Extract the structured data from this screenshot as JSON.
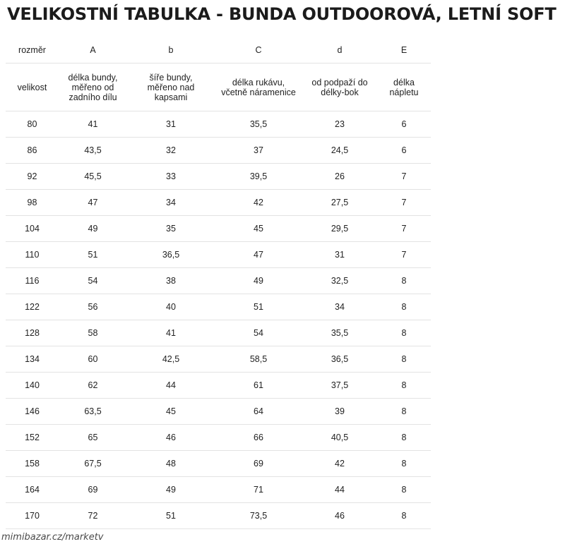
{
  "title": "VELIKOSTNÍ TABULKA - BUNDA OUTDOOROVÁ, LETNÍ SOFT",
  "table": {
    "header_codes": [
      "rozměr",
      "A",
      "b",
      "C",
      "d",
      "E"
    ],
    "header_labels": [
      [
        "velikost"
      ],
      [
        "délka bundy,",
        "měřeno od",
        "zadního dílu"
      ],
      [
        "šíře bundy,",
        "měřeno nad",
        "kapsami"
      ],
      [
        "délka rukávu,",
        "včetně náramenice"
      ],
      [
        "od podpaží do",
        "délky-bok"
      ],
      [
        "délka",
        "nápletu"
      ]
    ],
    "rows": [
      [
        "80",
        "41",
        "31",
        "35,5",
        "23",
        "6"
      ],
      [
        "86",
        "43,5",
        "32",
        "37",
        "24,5",
        "6"
      ],
      [
        "92",
        "45,5",
        "33",
        "39,5",
        "26",
        "7"
      ],
      [
        "98",
        "47",
        "34",
        "42",
        "27,5",
        "7"
      ],
      [
        "104",
        "49",
        "35",
        "45",
        "29,5",
        "7"
      ],
      [
        "110",
        "51",
        "36,5",
        "47",
        "31",
        "7"
      ],
      [
        "116",
        "54",
        "38",
        "49",
        "32,5",
        "8"
      ],
      [
        "122",
        "56",
        "40",
        "51",
        "34",
        "8"
      ],
      [
        "128",
        "58",
        "41",
        "54",
        "35,5",
        "8"
      ],
      [
        "134",
        "60",
        "42,5",
        "58,5",
        "36,5",
        "8"
      ],
      [
        "140",
        "62",
        "44",
        "61",
        "37,5",
        "8"
      ],
      [
        "146",
        "63,5",
        "45",
        "64",
        "39",
        "8"
      ],
      [
        "152",
        "65",
        "46",
        "66",
        "40,5",
        "8"
      ],
      [
        "158",
        "67,5",
        "48",
        "69",
        "42",
        "8"
      ],
      [
        "164",
        "69",
        "49",
        "71",
        "44",
        "8"
      ],
      [
        "170",
        "72",
        "51",
        "73,5",
        "46",
        "8"
      ]
    ]
  },
  "watermark": "mimibazar.cz/marketv"
}
